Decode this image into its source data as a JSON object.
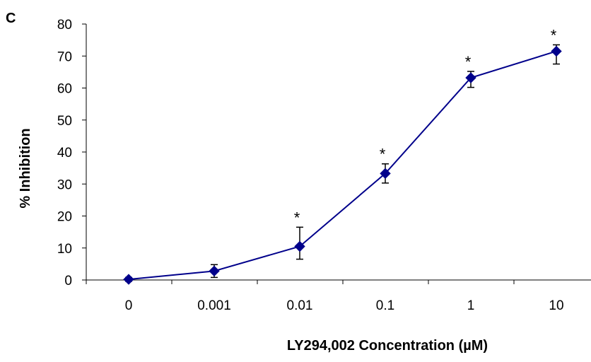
{
  "panel_label": "C",
  "chart_data": {
    "type": "line",
    "title": "",
    "xlabel": "LY294,002 Concentration (µM)",
    "ylabel": "% Inhibition",
    "categories": [
      "0",
      "0.001",
      "0.01",
      "0.1",
      "1",
      "10"
    ],
    "ylim": [
      0,
      80
    ],
    "yticks": [
      0,
      10,
      20,
      30,
      40,
      50,
      60,
      70,
      80
    ],
    "grid": false,
    "legend": "none",
    "series": [
      {
        "values": [
          0.2,
          2.8,
          10.5,
          33.3,
          63.2,
          71.5
        ],
        "error": [
          [
            0.6,
            0.6
          ],
          [
            2.0,
            2.0
          ],
          [
            4.0,
            6.0
          ],
          [
            3.0,
            3.0
          ],
          [
            3.0,
            2.0
          ],
          [
            4.0,
            2.0
          ]
        ],
        "significant": [
          false,
          false,
          true,
          true,
          true,
          true
        ],
        "color": "#00008B"
      }
    ],
    "significance_marker": "*"
  }
}
